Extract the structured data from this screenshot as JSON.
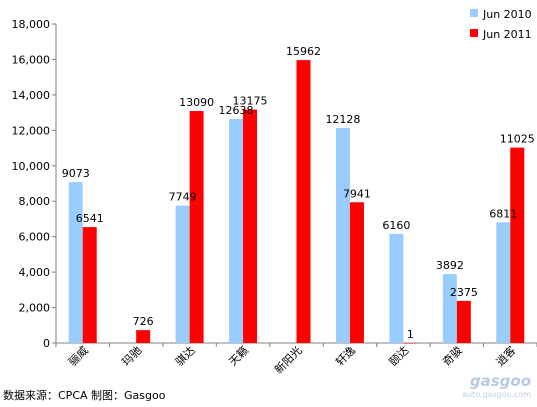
{
  "chart_data": {
    "type": "bar",
    "categories": [
      "骊威",
      "玛驰",
      "骐达",
      "天籁",
      "新阳光",
      "轩逸",
      "颐达",
      "奇骏",
      "逍客"
    ],
    "series": [
      {
        "name": "Jun 2010",
        "values": [
          9073,
          0,
          7749,
          12638,
          0,
          12128,
          6160,
          3892,
          6811
        ],
        "color": "#99ccff"
      },
      {
        "name": "Jun 2011",
        "values": [
          6541,
          726,
          13090,
          13175,
          15962,
          7941,
          1,
          2375,
          11025
        ],
        "color": "#ff0000"
      }
    ],
    "data_labels": [
      [
        "9073",
        "",
        "7749",
        "12638",
        "",
        "12128",
        "6160",
        "3892",
        "6811"
      ],
      [
        "6541",
        "726",
        "13090",
        "13175",
        "15962",
        "7941",
        "1",
        "2375",
        "11025"
      ]
    ],
    "yticks": [
      "0",
      "2,000",
      "4,000",
      "6,000",
      "8,000",
      "10,000",
      "12,000",
      "14,000",
      "16,000",
      "18,000"
    ],
    "ylim": [
      0,
      18000
    ],
    "grid": false,
    "legend_position": "top-right"
  },
  "footer": {
    "source": "数据来源：CPCA  制图：Gasgoo"
  },
  "watermark": {
    "logo": "gasgoo",
    "url": "auto.gasgoo.com"
  }
}
